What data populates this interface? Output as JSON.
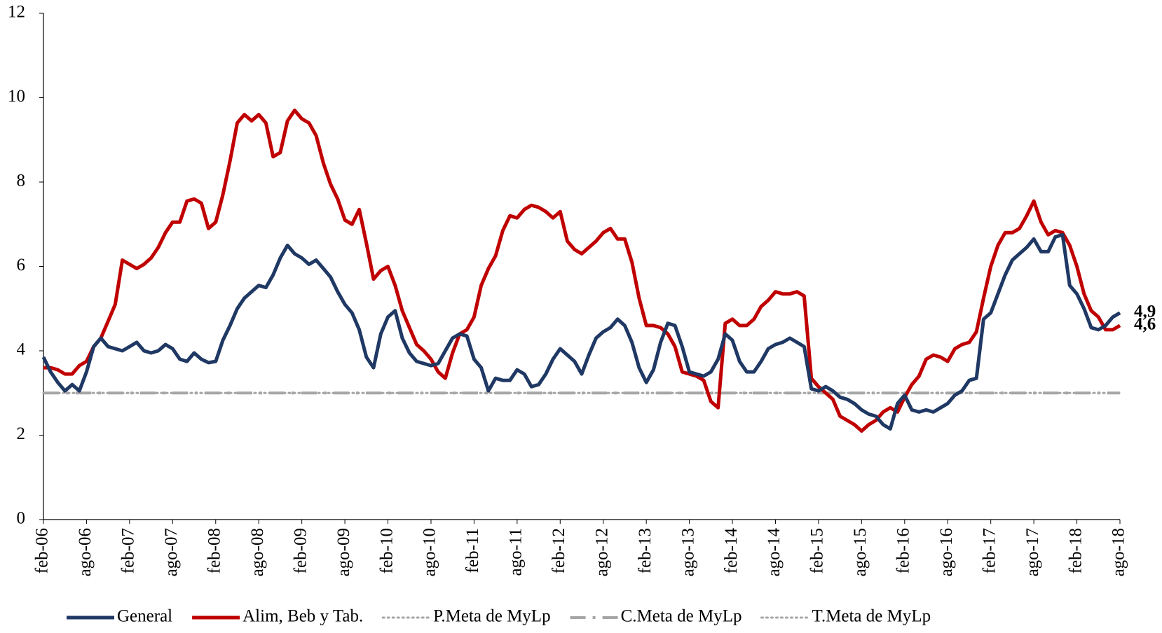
{
  "chart_data": {
    "type": "line",
    "categories": [
      "feb-06",
      null,
      null,
      null,
      null,
      null,
      "ago-06",
      null,
      null,
      null,
      null,
      null,
      "feb-07",
      null,
      null,
      null,
      null,
      null,
      "ago-07",
      null,
      null,
      null,
      null,
      null,
      "feb-08",
      null,
      null,
      null,
      null,
      null,
      "ago-08",
      null,
      null,
      null,
      null,
      null,
      "feb-09",
      null,
      null,
      null,
      null,
      null,
      "ago-09",
      null,
      null,
      null,
      null,
      null,
      "feb-10",
      null,
      null,
      null,
      null,
      null,
      "ago-10",
      null,
      null,
      null,
      null,
      null,
      "feb-11",
      null,
      null,
      null,
      null,
      null,
      "ago-11",
      null,
      null,
      null,
      null,
      null,
      "feb-12",
      null,
      null,
      null,
      null,
      null,
      "ago-12",
      null,
      null,
      null,
      null,
      null,
      "feb-13",
      null,
      null,
      null,
      null,
      null,
      "ago-13",
      null,
      null,
      null,
      null,
      null,
      "feb-14",
      null,
      null,
      null,
      null,
      null,
      "ago-14",
      null,
      null,
      null,
      null,
      null,
      "feb-15",
      null,
      null,
      null,
      null,
      null,
      "ago-15",
      null,
      null,
      null,
      null,
      null,
      "feb-16",
      null,
      null,
      null,
      null,
      null,
      "ago-16",
      null,
      null,
      null,
      null,
      null,
      "feb-17",
      null,
      null,
      null,
      null,
      null,
      "ago-17",
      null,
      null,
      null,
      null,
      null,
      "feb-18",
      null,
      null,
      null,
      null,
      null,
      "ago-18"
    ],
    "series": [
      {
        "name": "P.Meta de MyLp",
        "color": "#a6a6a6",
        "style": "dotted",
        "values": [
          3,
          3,
          3,
          3,
          3,
          3,
          3,
          3,
          3,
          3,
          3,
          3,
          3,
          3,
          3,
          3,
          3,
          3,
          3,
          3,
          3,
          3,
          3,
          3,
          3,
          3,
          3,
          3,
          3,
          3,
          3,
          3,
          3,
          3,
          3,
          3,
          3,
          3,
          3,
          3,
          3,
          3,
          3,
          3,
          3,
          3,
          3,
          3,
          3,
          3,
          3,
          3,
          3,
          3,
          3,
          3,
          3,
          3,
          3,
          3,
          3,
          3,
          3,
          3,
          3,
          3,
          3,
          3,
          3,
          3,
          3,
          3,
          3,
          3,
          3,
          3,
          3,
          3,
          3,
          3,
          3,
          3,
          3,
          3,
          3,
          3,
          3,
          3,
          3,
          3,
          3,
          3,
          3,
          3,
          3,
          3,
          3,
          3,
          3,
          3,
          3,
          3,
          3,
          3,
          3,
          3,
          3,
          3,
          3,
          3,
          3,
          3,
          3,
          3,
          3,
          3,
          3,
          3,
          3,
          3,
          3,
          3,
          3,
          3,
          3,
          3,
          3,
          3,
          3,
          3,
          3,
          3,
          3,
          3,
          3,
          3,
          3,
          3,
          3,
          3,
          3,
          3,
          3,
          3,
          3,
          3,
          3,
          3,
          3,
          3,
          3
        ]
      },
      {
        "name": "T.Meta de MyLp",
        "color": "#a6a6a6",
        "style": "dotted",
        "values": [
          3,
          3,
          3,
          3,
          3,
          3,
          3,
          3,
          3,
          3,
          3,
          3,
          3,
          3,
          3,
          3,
          3,
          3,
          3,
          3,
          3,
          3,
          3,
          3,
          3,
          3,
          3,
          3,
          3,
          3,
          3,
          3,
          3,
          3,
          3,
          3,
          3,
          3,
          3,
          3,
          3,
          3,
          3,
          3,
          3,
          3,
          3,
          3,
          3,
          3,
          3,
          3,
          3,
          3,
          3,
          3,
          3,
          3,
          3,
          3,
          3,
          3,
          3,
          3,
          3,
          3,
          3,
          3,
          3,
          3,
          3,
          3,
          3,
          3,
          3,
          3,
          3,
          3,
          3,
          3,
          3,
          3,
          3,
          3,
          3,
          3,
          3,
          3,
          3,
          3,
          3,
          3,
          3,
          3,
          3,
          3,
          3,
          3,
          3,
          3,
          3,
          3,
          3,
          3,
          3,
          3,
          3,
          3,
          3,
          3,
          3,
          3,
          3,
          3,
          3,
          3,
          3,
          3,
          3,
          3,
          3,
          3,
          3,
          3,
          3,
          3,
          3,
          3,
          3,
          3,
          3,
          3,
          3,
          3,
          3,
          3,
          3,
          3,
          3,
          3,
          3,
          3,
          3,
          3,
          3,
          3,
          3,
          3,
          3,
          3,
          3
        ]
      },
      {
        "name": "C.Meta de MyLp",
        "color": "#a6a6a6",
        "style": "dashdot",
        "values": [
          3,
          3,
          3,
          3,
          3,
          3,
          3,
          3,
          3,
          3,
          3,
          3,
          3,
          3,
          3,
          3,
          3,
          3,
          3,
          3,
          3,
          3,
          3,
          3,
          3,
          3,
          3,
          3,
          3,
          3,
          3,
          3,
          3,
          3,
          3,
          3,
          3,
          3,
          3,
          3,
          3,
          3,
          3,
          3,
          3,
          3,
          3,
          3,
          3,
          3,
          3,
          3,
          3,
          3,
          3,
          3,
          3,
          3,
          3,
          3,
          3,
          3,
          3,
          3,
          3,
          3,
          3,
          3,
          3,
          3,
          3,
          3,
          3,
          3,
          3,
          3,
          3,
          3,
          3,
          3,
          3,
          3,
          3,
          3,
          3,
          3,
          3,
          3,
          3,
          3,
          3,
          3,
          3,
          3,
          3,
          3,
          3,
          3,
          3,
          3,
          3,
          3,
          3,
          3,
          3,
          3,
          3,
          3,
          3,
          3,
          3,
          3,
          3,
          3,
          3,
          3,
          3,
          3,
          3,
          3,
          3,
          3,
          3,
          3,
          3,
          3,
          3,
          3,
          3,
          3,
          3,
          3,
          3,
          3,
          3,
          3,
          3,
          3,
          3,
          3,
          3,
          3,
          3,
          3,
          3,
          3,
          3,
          3,
          3,
          3,
          3
        ]
      },
      {
        "name": "Alim, Beb y Tab.",
        "color": "#c00000",
        "style": "solid",
        "end_label": "4,6",
        "values": [
          3.6,
          3.6,
          3.55,
          3.45,
          3.45,
          3.65,
          3.75,
          4.1,
          4.3,
          4.7,
          5.1,
          6.15,
          6.05,
          5.95,
          6.05,
          6.2,
          6.45,
          6.8,
          7.05,
          7.05,
          7.55,
          7.6,
          7.5,
          6.9,
          7.05,
          7.7,
          8.5,
          9.4,
          9.6,
          9.45,
          9.6,
          9.4,
          8.6,
          8.7,
          9.45,
          9.7,
          9.5,
          9.4,
          9.1,
          8.45,
          7.95,
          7.6,
          7.1,
          7.0,
          7.35,
          6.55,
          5.7,
          5.9,
          6.0,
          5.55,
          4.95,
          4.55,
          4.15,
          4.0,
          3.8,
          3.5,
          3.35,
          3.95,
          4.4,
          4.5,
          4.8,
          5.55,
          5.95,
          6.25,
          6.85,
          7.2,
          7.15,
          7.35,
          7.45,
          7.4,
          7.3,
          7.15,
          7.3,
          6.6,
          6.4,
          6.3,
          6.45,
          6.6,
          6.8,
          6.9,
          6.65,
          6.65,
          6.1,
          5.25,
          4.6,
          4.6,
          4.55,
          4.4,
          4.1,
          3.5,
          3.45,
          3.4,
          3.3,
          2.8,
          2.65,
          4.65,
          4.75,
          4.6,
          4.6,
          4.75,
          5.05,
          5.2,
          5.4,
          5.35,
          5.35,
          5.4,
          5.3,
          3.35,
          3.15,
          3.0,
          2.85,
          2.45,
          2.35,
          2.25,
          2.1,
          2.25,
          2.35,
          2.55,
          2.65,
          2.55,
          2.9,
          3.2,
          3.4,
          3.8,
          3.9,
          3.85,
          3.75,
          4.05,
          4.15,
          4.2,
          4.45,
          5.25,
          6.0,
          6.5,
          6.8,
          6.8,
          6.9,
          7.2,
          7.55,
          7.05,
          6.75,
          6.85,
          6.8,
          6.5,
          6.0,
          5.35,
          4.95,
          4.8,
          4.5,
          4.5,
          4.6
        ]
      },
      {
        "name": "General",
        "color": "#1f3864",
        "style": "solid",
        "end_label": "4,9",
        "values": [
          3.85,
          3.5,
          3.25,
          3.05,
          3.2,
          3.05,
          3.5,
          4.1,
          4.3,
          4.1,
          4.05,
          4.0,
          4.1,
          4.2,
          4.0,
          3.95,
          4.0,
          4.15,
          4.05,
          3.8,
          3.75,
          3.95,
          3.8,
          3.72,
          3.75,
          4.25,
          4.6,
          5.0,
          5.25,
          5.4,
          5.55,
          5.5,
          5.8,
          6.2,
          6.5,
          6.3,
          6.2,
          6.05,
          6.15,
          5.95,
          5.75,
          5.4,
          5.1,
          4.9,
          4.5,
          3.85,
          3.6,
          4.4,
          4.8,
          4.95,
          4.3,
          3.95,
          3.75,
          3.7,
          3.65,
          3.7,
          4.0,
          4.3,
          4.4,
          4.35,
          3.8,
          3.6,
          3.05,
          3.35,
          3.3,
          3.3,
          3.55,
          3.45,
          3.15,
          3.2,
          3.45,
          3.8,
          4.05,
          3.9,
          3.75,
          3.45,
          3.9,
          4.3,
          4.45,
          4.55,
          4.75,
          4.6,
          4.2,
          3.6,
          3.25,
          3.55,
          4.2,
          4.65,
          4.6,
          4.1,
          3.5,
          3.45,
          3.4,
          3.5,
          3.8,
          4.4,
          4.25,
          3.75,
          3.5,
          3.5,
          3.75,
          4.05,
          4.15,
          4.2,
          4.3,
          4.2,
          4.1,
          3.1,
          3.05,
          3.15,
          3.05,
          2.9,
          2.85,
          2.75,
          2.6,
          2.5,
          2.45,
          2.25,
          2.15,
          2.75,
          2.95,
          2.6,
          2.55,
          2.6,
          2.55,
          2.65,
          2.75,
          2.95,
          3.05,
          3.3,
          3.35,
          4.75,
          4.9,
          5.35,
          5.8,
          6.15,
          6.3,
          6.45,
          6.65,
          6.35,
          6.35,
          6.7,
          6.75,
          5.55,
          5.35,
          5.0,
          4.55,
          4.5,
          4.6,
          4.8,
          4.9
        ]
      }
    ],
    "legend_order": [
      4,
      3,
      0,
      2,
      1
    ],
    "ylim": [
      0,
      12
    ],
    "yticks": [
      0,
      2,
      4,
      6,
      8,
      10,
      12
    ],
    "grid": false,
    "legend": "bottom"
  }
}
